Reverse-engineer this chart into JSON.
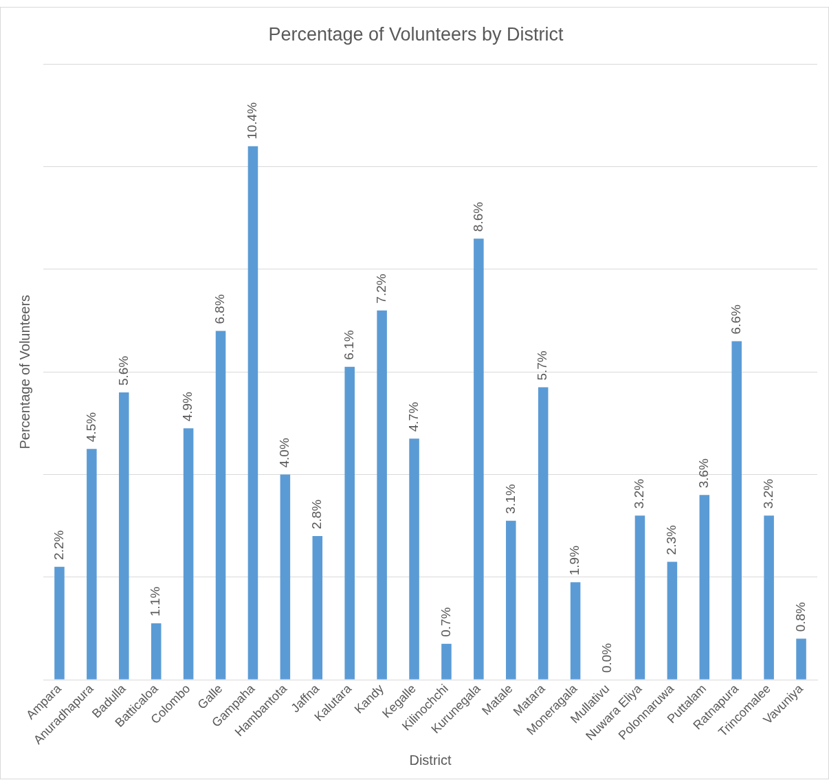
{
  "chart_data": {
    "type": "bar",
    "title": "Percentage of Volunteers by District",
    "xlabel": "District",
    "ylabel": "Percentage of Volunteers",
    "categories": [
      "Ampara",
      "Anuradhapura",
      "Badulla",
      "Batticaloa",
      "Colombo",
      "Galle",
      "Gampaha",
      "Hambantota",
      "Jaffna",
      "Kalutara",
      "Kandy",
      "Kegalle",
      "Kilinochchi",
      "Kurunegala",
      "Matale",
      "Matara",
      "Moneragala",
      "Mullativu",
      "Nuwara Eliya",
      "Polonnaruwa",
      "Puttalam",
      "Ratnapura",
      "Trincomalee",
      "Vavuniya"
    ],
    "values": [
      2.2,
      4.5,
      5.6,
      1.1,
      4.9,
      6.8,
      10.4,
      4.0,
      2.8,
      6.1,
      7.2,
      4.7,
      0.7,
      8.6,
      3.1,
      5.7,
      1.9,
      0.0,
      3.2,
      2.3,
      3.6,
      6.6,
      3.2,
      0.8
    ],
    "value_labels": [
      "2.2%",
      "4.5%",
      "5.6%",
      "1.1%",
      "4.9%",
      "6.8%",
      "10.4%",
      "4.0%",
      "2.8%",
      "6.1%",
      "7.2%",
      "4.7%",
      "0.7%",
      "8.6%",
      "3.1%",
      "5.7%",
      "1.9%",
      "0.0%",
      "3.2%",
      "2.3%",
      "3.6%",
      "6.6%",
      "3.2%",
      "0.8%"
    ],
    "color": "#5b9bd5",
    "ylim": [
      0,
      12
    ],
    "yticks": [
      {
        "value": 0,
        "label": null
      },
      {
        "value": 2,
        "label": null
      },
      {
        "value": 4,
        "label": null
      },
      {
        "value": 6,
        "label": null
      },
      {
        "value": 8,
        "label": null
      },
      {
        "value": 10,
        "label": null
      },
      {
        "value": 12,
        "label": null
      }
    ],
    "grid": "y",
    "tick_labels": "x",
    "legend": false
  }
}
